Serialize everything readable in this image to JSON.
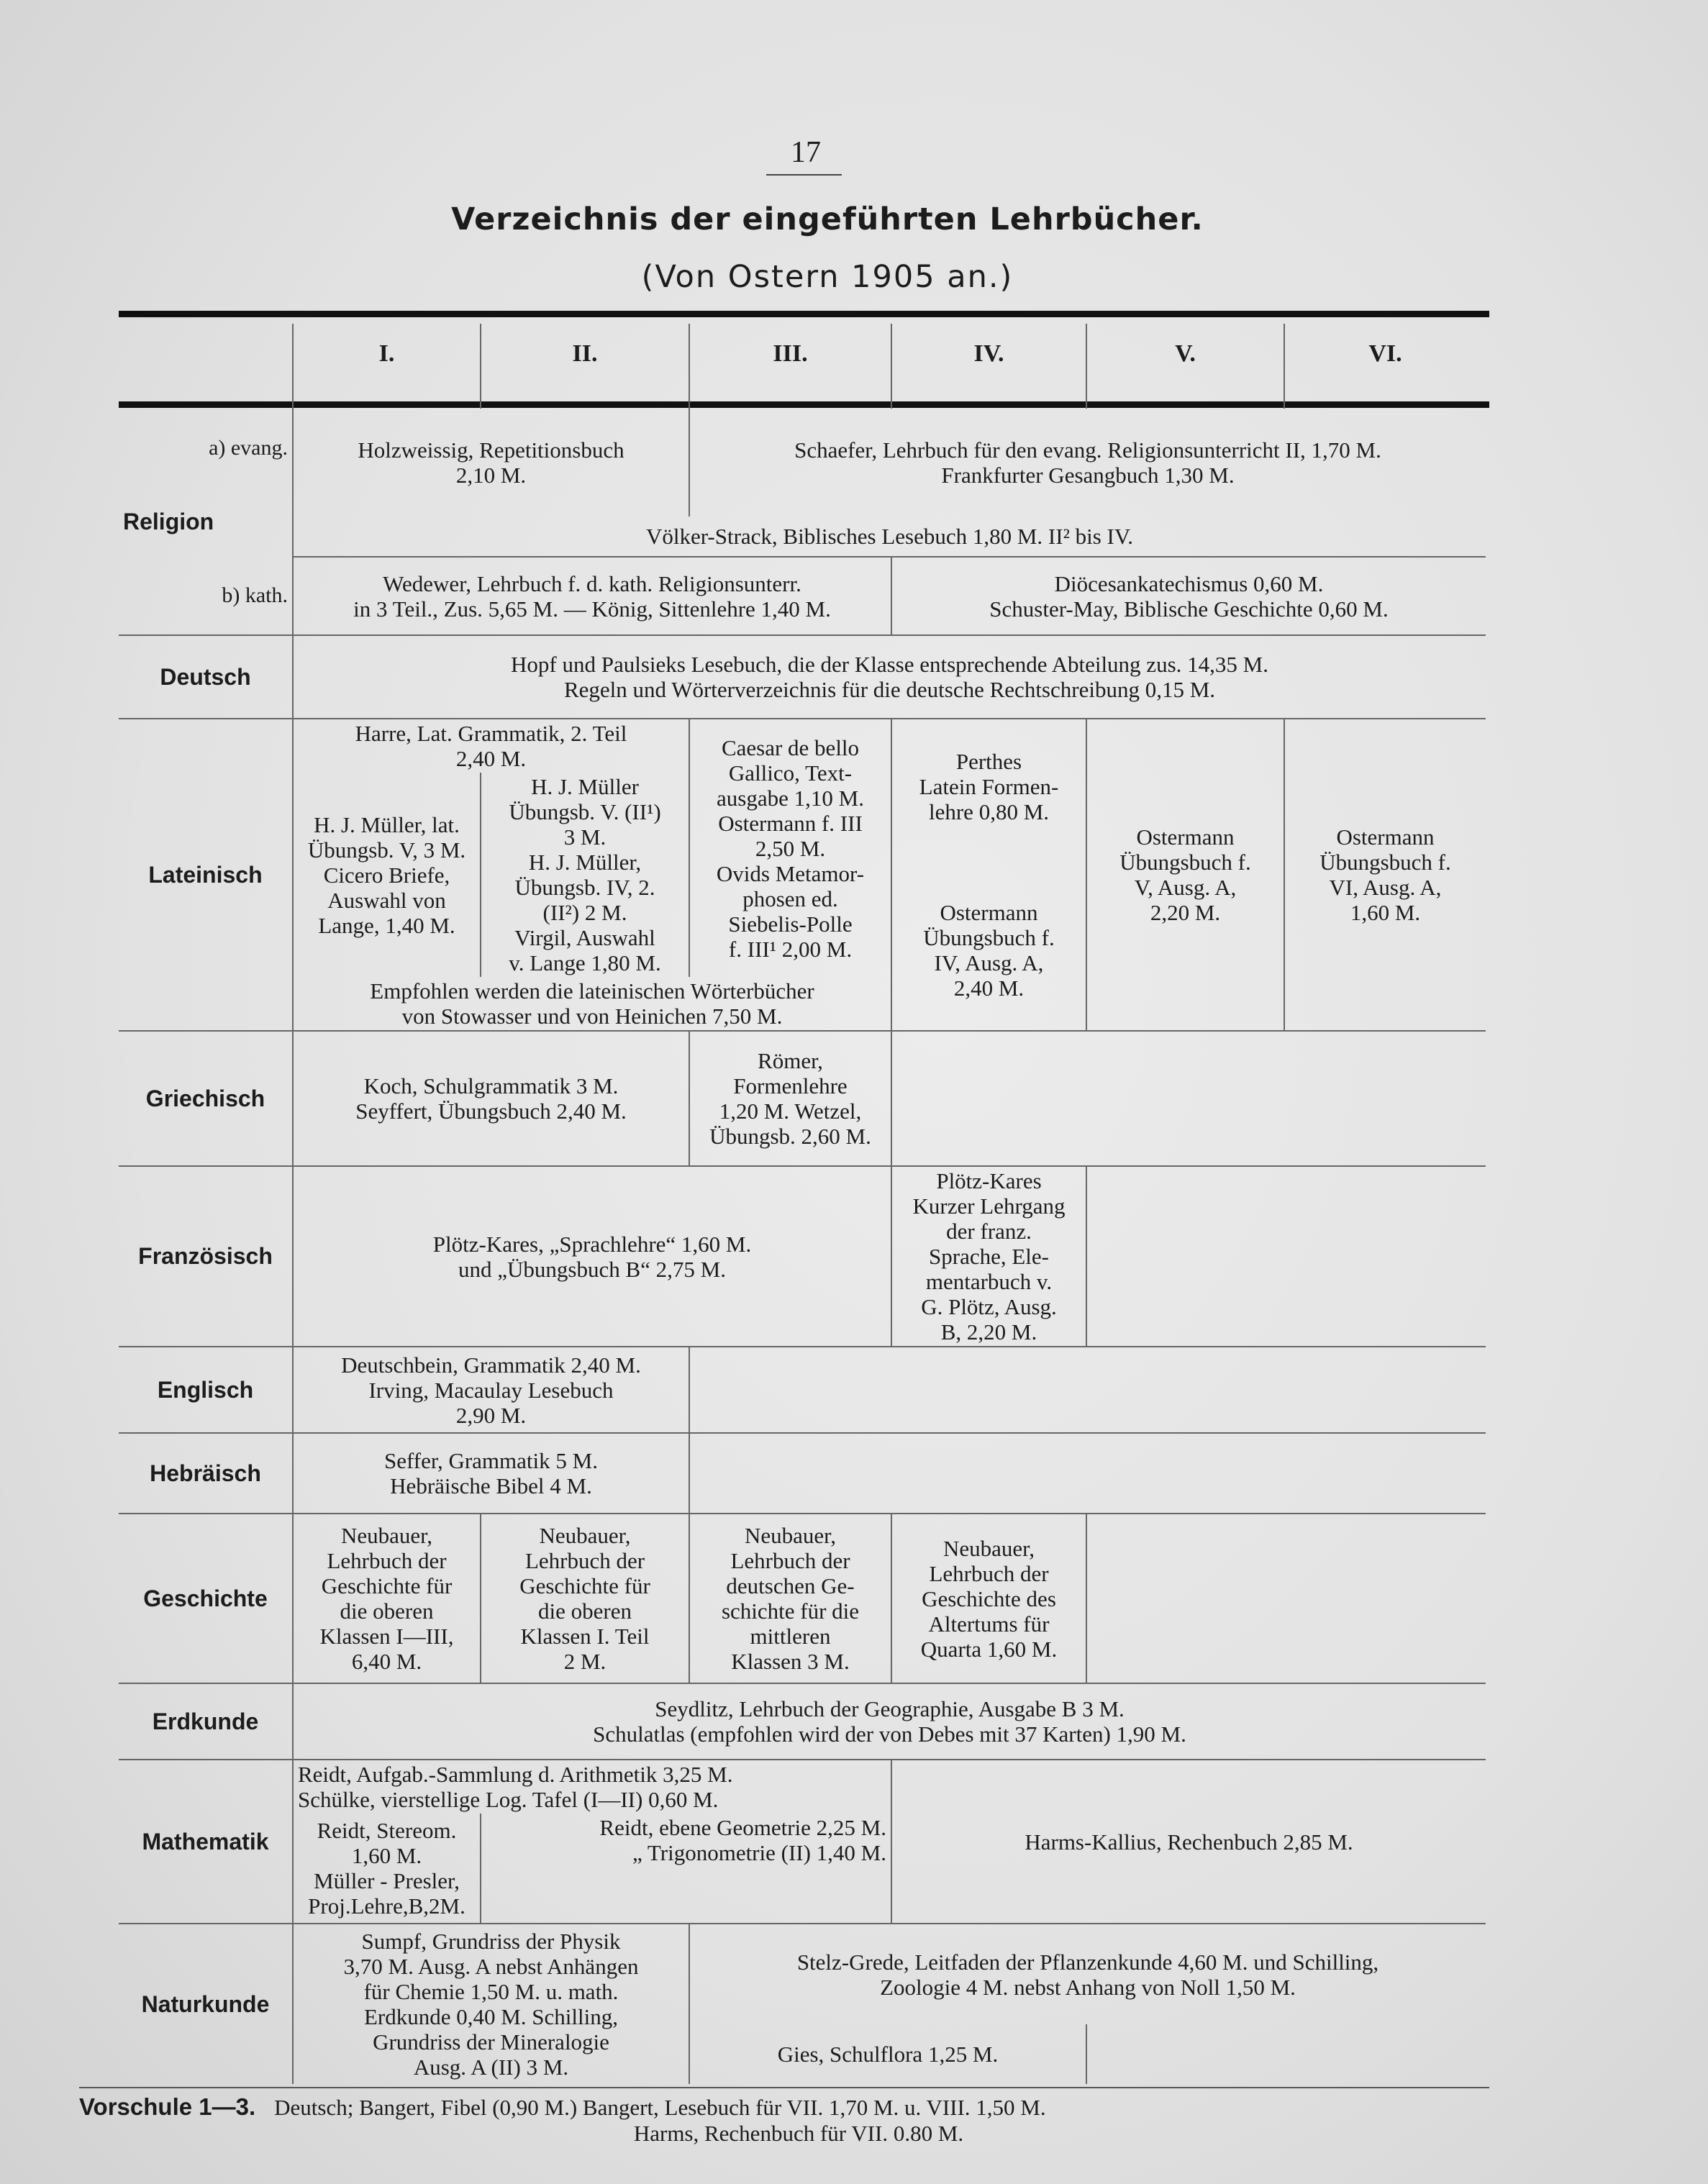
{
  "page_number": "17",
  "title": "Verzeichnis der eingeführten Lehrbücher.",
  "subtitle": "(Von Ostern 1905 an.)",
  "columns": [
    "I.",
    "II.",
    "III.",
    "IV.",
    "V.",
    "VI."
  ],
  "religion": {
    "label": "Religion",
    "evang_label": "a) evang.",
    "kath_label": "b) kath.",
    "evang_I_II": "Holzweissig, Repetitionsbuch\n2,10 M.",
    "evang_III_VI": "Schaefer, Lehrbuch für den evang. Religionsunterricht II, 1,70 M.\nFrankfurter Gesangbuch 1,30 M.",
    "common": "Völker-Strack, Biblisches Lesebuch 1,80 M. II² bis IV.",
    "kath_I_III": "Wedewer, Lehrbuch f. d. kath. Religionsunterr.\nin 3 Teil., Zus. 5,65 M. — König, Sittenlehre 1,40 M.",
    "kath_IV_VI": "Diöcesankatechismus 0,60 M.\nSchuster-May, Biblische Geschichte 0,60 M."
  },
  "deutsch": {
    "label": "Deutsch",
    "all": "Hopf und Paulsieks Lesebuch, die der Klasse entsprechende Abteilung zus. 14,35 M.\nRegeln und Wörterverzeichnis für die deutsche Rechtschreibung 0,15 M."
  },
  "lateinisch": {
    "label": "Lateinisch",
    "I_II_top": "Harre, Lat. Grammatik, 2. Teil\n2,40 M.",
    "I": "H. J. Müller, lat.\nÜbungsb. V, 3 M.\nCicero Briefe,\nAuswahl von\nLange, 1,40 M.",
    "II": "H. J. Müller\nÜbungsb. V. (II¹)\n3 M.\nH. J. Müller,\nÜbungsb. IV, 2.\n(II²) 2 M.\nVirgil, Auswahl\nv. Lange 1,80 M.",
    "III": "Caesar de bello\nGallico, Text-\nausgabe 1,10 M.\nOstermann f. III\n2,50 M.\nOvids Metamor-\nphosen ed.\nSiebelis-Polle\nf. III¹ 2,00 M.",
    "IV": "Perthes\nLatein Formen-\nlehre 0,80 M.\n\n\n\nOstermann\nÜbungsbuch f.\nIV, Ausg. A,\n2,40 M.",
    "V": "Ostermann\nÜbungsbuch f.\nV, Ausg. A,\n2,20 M.",
    "VI": "Ostermann\nÜbungsbuch f.\nVI, Ausg. A,\n1,60 M.",
    "I_III_bottom": "Empfohlen werden die lateinischen Wörterbücher\nvon Stowasser und von Heinichen 7,50 M."
  },
  "griechisch": {
    "label": "Griechisch",
    "I_II": "Koch, Schulgrammatik 3 M.\nSeyffert, Übungsbuch 2,40 M.",
    "III": "Römer,\nFormenlehre\n1,20 M. Wetzel,\nÜbungsb. 2,60 M."
  },
  "franzoesisch": {
    "label": "Französisch",
    "I_III": "Plötz-Kares, „Sprachlehre“ 1,60 M.\nund „Übungsbuch B“ 2,75 M.",
    "IV": "Plötz-Kares\nKurzer Lehrgang\nder franz.\nSprache, Ele-\nmentarbuch v.\nG. Plötz, Ausg.\nB, 2,20 M."
  },
  "englisch": {
    "label": "Englisch",
    "I_II": "Deutschbein, Grammatik 2,40 M.\nIrving, Macaulay Lesebuch\n2,90 M."
  },
  "hebraeisch": {
    "label": "Hebräisch",
    "I_II": "Seffer, Grammatik 5 M.\nHebräische Bibel 4 M."
  },
  "geschichte": {
    "label": "Geschichte",
    "I": "Neubauer,\nLehrbuch der\nGeschichte für\ndie oberen\nKlassen I—III,\n6,40 M.",
    "II": "Neubauer,\nLehrbuch der\nGeschichte für\ndie oberen\nKlassen I. Teil\n2 M.",
    "III": "Neubauer,\nLehrbuch der\ndeutschen Ge-\nschichte für die\nmittleren\nKlassen 3 M.",
    "IV": "Neubauer,\nLehrbuch der\nGeschichte des\nAltertums für\nQuarta 1,60 M."
  },
  "erdkunde": {
    "label": "Erdkunde",
    "all": "Seydlitz, Lehrbuch der Geographie, Ausgabe B 3 M.\nSchulatlas (empfohlen wird der von Debes mit 37 Karten) 1,90 M."
  },
  "mathematik": {
    "label": "Mathematik",
    "I_III_top": "Reidt, Aufgab.-Sammlung d. Arithmetik 3,25 M.\nSchülke, vierstellige Log. Tafel (I—II) 0,60 M.",
    "I": "Reidt, Stereom.\n1,60 M.\nMüller - Presler,\nProj.Lehre,B,2M.",
    "II_III": "Reidt, ebene Geometrie 2,25 M.\n„ Trigonometrie (II) 1,40 M.",
    "IV_VI": "Harms-Kallius, Rechenbuch 2,85 M."
  },
  "naturkunde": {
    "label": "Naturkunde",
    "I_II": "Sumpf, Grundriss der Physik\n3,70 M. Ausg. A nebst Anhängen\nfür Chemie 1,50 M. u. math.\nErdkunde 0,40 M. Schilling,\nGrundriss der Mineralogie\nAusg. A (II) 3 M.",
    "III_VI": "Stelz-Grede, Leitfaden der Pflanzenkunde 4,60 M. und Schilling,\nZoologie 4 M. nebst Anhang von Noll 1,50 M.",
    "III_IV_bottom": "Gies, Schulflora 1,25 M."
  },
  "vorschule": {
    "label": "Vorschule 1—3.",
    "line1": "Deutsch; Bangert, Fibel (0,90 M.) Bangert, Lesebuch für VII. 1,70 M. u. VIII. 1,50 M.",
    "line2": "Harms, Rechenbuch für VII. 0.80 M."
  }
}
